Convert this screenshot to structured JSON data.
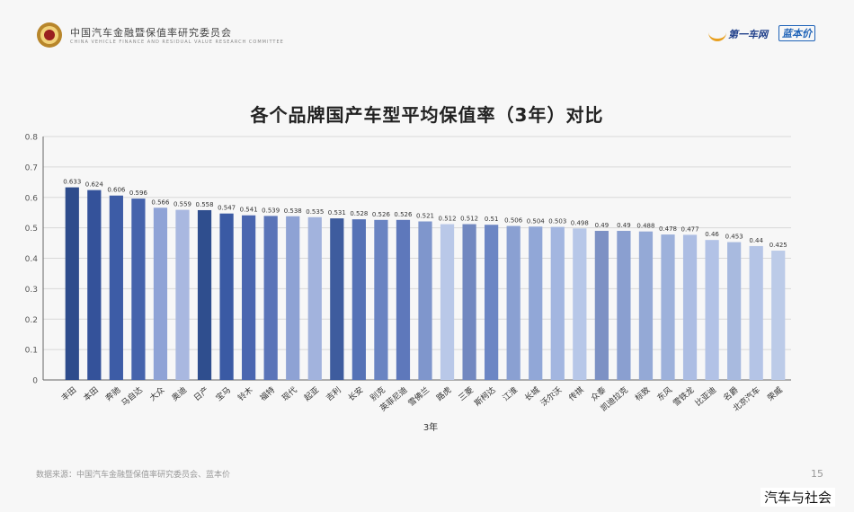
{
  "header": {
    "org_name": "中国汽车金融暨保值率研究委员会",
    "org_subtitle": "CHINA VEHICLE FINANCE AND RESIDUAL VALUE RESEARCH COMMITTEE",
    "brand1": "第一车网",
    "brand2": "蓝本价"
  },
  "footer": {
    "source": "数据来源：中国汽车金融暨保值率研究委员会、蓝本价",
    "page_number": "15"
  },
  "watermark": "汽车与社会",
  "colors": {
    "bar_dark": "#2e4c8c",
    "bar_light": "#bccbe8",
    "axis": "#666666",
    "grid": "#d9d9d9"
  },
  "chart_data": {
    "type": "bar",
    "title": "各个品牌国产车型平均保值率（3年）对比",
    "xlabel": "3年",
    "ylabel": "",
    "ylim": [
      0,
      0.8
    ],
    "yticks": [
      "0",
      "0.1",
      "0.2",
      "0.3",
      "0.4",
      "0.5",
      "0.6",
      "0.7",
      "0.8"
    ],
    "grid": true,
    "categories": [
      "丰田",
      "本田",
      "奔驰",
      "马自达",
      "大众",
      "奥迪",
      "日产",
      "宝马",
      "铃木",
      "福特",
      "现代",
      "起亚",
      "吉利",
      "长安",
      "别克",
      "英菲尼迪",
      "雪佛兰",
      "路虎",
      "三菱",
      "斯柯达",
      "江淮",
      "长城",
      "沃尔沃",
      "传祺",
      "众泰",
      "凯迪拉克",
      "标致",
      "东风",
      "雪铁龙",
      "比亚迪",
      "名爵",
      "北京汽车",
      "荣威"
    ],
    "values": [
      0.633,
      0.624,
      0.606,
      0.596,
      0.566,
      0.559,
      0.558,
      0.547,
      0.541,
      0.539,
      0.538,
      0.535,
      0.531,
      0.528,
      0.526,
      0.526,
      0.521,
      0.512,
      0.512,
      0.51,
      0.506,
      0.504,
      0.503,
      0.498,
      0.49,
      0.49,
      0.488,
      0.478,
      0.477,
      0.46,
      0.453,
      0.44,
      0.425
    ],
    "value_labels": [
      "0.633",
      "0.624",
      "0.606",
      "0.596",
      "0.566",
      "0.559",
      "0.558",
      "0.547",
      "0.541",
      "0.539",
      "0.538",
      "0.535",
      "0.531",
      "0.528",
      "0.526",
      "0.526",
      "0.521",
      "0.512",
      "0.512",
      "0.51",
      "0.506",
      "0.504",
      "0.503",
      "0.498",
      "0.49",
      "0.49",
      "0.488",
      "0.478",
      "0.477",
      "0.46",
      "0.453",
      "0.44",
      "0.425"
    ],
    "bar_colors": [
      "#2e4c8c",
      "#34529a",
      "#3d5ca6",
      "#4563ac",
      "#8fa3d6",
      "#a9b8e0",
      "#2f4e8e",
      "#3a5aa4",
      "#4a66b0",
      "#5a74b8",
      "#8ea2d4",
      "#a2b3dd",
      "#3e5c9e",
      "#5572b6",
      "#6a84c2",
      "#5e78bb",
      "#7f96cc",
      "#b9c8e8",
      "#7288c0",
      "#6c86c4",
      "#8aa0d2",
      "#91a7d7",
      "#a3b6e0",
      "#b7c7e8",
      "#7d91c4",
      "#8a9fd0",
      "#94a9d6",
      "#9db1db",
      "#acbde3",
      "#b2c2e6",
      "#a8badf",
      "#b4c4e6",
      "#bccbe8"
    ]
  }
}
